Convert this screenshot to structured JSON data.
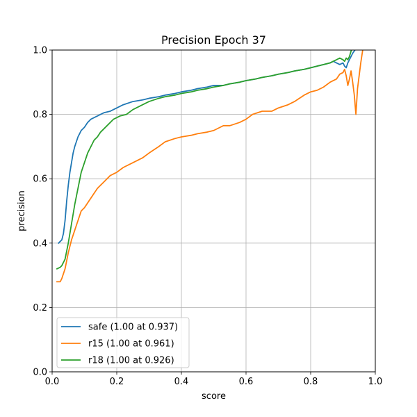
{
  "chart_data": {
    "type": "line",
    "title": "Precision Epoch 37",
    "xlabel": "score",
    "ylabel": "precision",
    "xlim": [
      0,
      1
    ],
    "ylim": [
      0,
      1
    ],
    "xticks": [
      "0.0",
      "0.2",
      "0.4",
      "0.6",
      "0.8",
      "1.0"
    ],
    "yticks": [
      "0.0",
      "0.2",
      "0.4",
      "0.6",
      "0.8",
      "1.0"
    ],
    "grid": true,
    "legend_position": "lower-left",
    "series": [
      {
        "name": "safe (1.00 at 0.937)",
        "color": "#1f77b4",
        "x": [
          0.02,
          0.03,
          0.035,
          0.04,
          0.045,
          0.05,
          0.055,
          0.06,
          0.065,
          0.07,
          0.08,
          0.09,
          0.1,
          0.11,
          0.12,
          0.13,
          0.14,
          0.15,
          0.16,
          0.18,
          0.2,
          0.22,
          0.25,
          0.28,
          0.3,
          0.33,
          0.35,
          0.38,
          0.4,
          0.43,
          0.45,
          0.48,
          0.5,
          0.53,
          0.55,
          0.58,
          0.6,
          0.63,
          0.65,
          0.68,
          0.7,
          0.73,
          0.75,
          0.78,
          0.8,
          0.82,
          0.84,
          0.86,
          0.87,
          0.88,
          0.89,
          0.9,
          0.905,
          0.91,
          0.915,
          0.92,
          0.93,
          0.937
        ],
        "y": [
          0.4,
          0.41,
          0.43,
          0.47,
          0.53,
          0.58,
          0.62,
          0.65,
          0.68,
          0.7,
          0.73,
          0.75,
          0.76,
          0.775,
          0.785,
          0.79,
          0.795,
          0.8,
          0.805,
          0.81,
          0.82,
          0.83,
          0.84,
          0.845,
          0.85,
          0.855,
          0.86,
          0.865,
          0.87,
          0.875,
          0.88,
          0.885,
          0.89,
          0.89,
          0.895,
          0.9,
          0.905,
          0.91,
          0.915,
          0.92,
          0.925,
          0.93,
          0.935,
          0.94,
          0.945,
          0.95,
          0.955,
          0.96,
          0.965,
          0.96,
          0.955,
          0.96,
          0.95,
          0.945,
          0.96,
          0.97,
          0.99,
          1.0
        ]
      },
      {
        "name": "r15 (1.00 at 0.961)",
        "color": "#ff7f0e",
        "x": [
          0.015,
          0.025,
          0.03,
          0.04,
          0.05,
          0.06,
          0.07,
          0.08,
          0.09,
          0.1,
          0.12,
          0.14,
          0.16,
          0.18,
          0.2,
          0.22,
          0.25,
          0.28,
          0.3,
          0.33,
          0.35,
          0.38,
          0.4,
          0.43,
          0.45,
          0.48,
          0.5,
          0.52,
          0.53,
          0.55,
          0.58,
          0.6,
          0.62,
          0.65,
          0.68,
          0.7,
          0.73,
          0.75,
          0.78,
          0.8,
          0.82,
          0.84,
          0.86,
          0.87,
          0.88,
          0.89,
          0.9,
          0.905,
          0.91,
          0.915,
          0.92,
          0.925,
          0.93,
          0.935,
          0.94,
          0.945,
          0.95,
          0.955,
          0.961
        ],
        "y": [
          0.28,
          0.28,
          0.29,
          0.32,
          0.37,
          0.41,
          0.44,
          0.47,
          0.5,
          0.51,
          0.54,
          0.57,
          0.59,
          0.61,
          0.62,
          0.635,
          0.65,
          0.665,
          0.68,
          0.7,
          0.715,
          0.725,
          0.73,
          0.735,
          0.74,
          0.745,
          0.75,
          0.76,
          0.765,
          0.765,
          0.775,
          0.785,
          0.8,
          0.81,
          0.81,
          0.82,
          0.83,
          0.84,
          0.86,
          0.87,
          0.875,
          0.885,
          0.9,
          0.905,
          0.91,
          0.925,
          0.93,
          0.94,
          0.92,
          0.89,
          0.91,
          0.935,
          0.9,
          0.86,
          0.8,
          0.88,
          0.92,
          0.96,
          1.0
        ]
      },
      {
        "name": "r18 (1.00 at 0.926)",
        "color": "#2ca02c",
        "x": [
          0.015,
          0.025,
          0.03,
          0.04,
          0.05,
          0.06,
          0.07,
          0.08,
          0.09,
          0.1,
          0.11,
          0.12,
          0.13,
          0.14,
          0.15,
          0.17,
          0.19,
          0.21,
          0.23,
          0.25,
          0.28,
          0.3,
          0.33,
          0.35,
          0.38,
          0.4,
          0.43,
          0.45,
          0.48,
          0.5,
          0.53,
          0.55,
          0.58,
          0.6,
          0.63,
          0.65,
          0.68,
          0.7,
          0.73,
          0.75,
          0.78,
          0.8,
          0.82,
          0.84,
          0.86,
          0.87,
          0.88,
          0.89,
          0.9,
          0.905,
          0.91,
          0.915,
          0.92,
          0.926
        ],
        "y": [
          0.32,
          0.325,
          0.33,
          0.35,
          0.4,
          0.46,
          0.52,
          0.57,
          0.62,
          0.65,
          0.68,
          0.7,
          0.72,
          0.73,
          0.745,
          0.765,
          0.785,
          0.795,
          0.8,
          0.815,
          0.83,
          0.84,
          0.85,
          0.855,
          0.86,
          0.865,
          0.87,
          0.875,
          0.88,
          0.885,
          0.89,
          0.895,
          0.9,
          0.905,
          0.91,
          0.915,
          0.92,
          0.925,
          0.93,
          0.935,
          0.94,
          0.945,
          0.95,
          0.955,
          0.96,
          0.965,
          0.97,
          0.975,
          0.97,
          0.965,
          0.975,
          0.97,
          0.98,
          1.0
        ]
      }
    ]
  }
}
